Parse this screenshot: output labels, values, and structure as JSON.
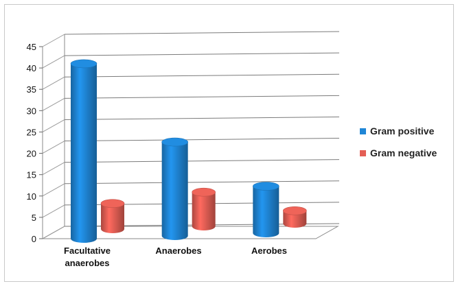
{
  "chart_data": {
    "type": "bar",
    "categories": [
      "Facultative anaerobes",
      "Anaerobes",
      "Aerobes"
    ],
    "category_lines": [
      [
        "Facultative",
        "anaerobes"
      ],
      [
        "Anaerobes"
      ],
      [
        "Aerobes"
      ]
    ],
    "series": [
      {
        "name": "Gram positive",
        "values": [
          41,
          22,
          11
        ],
        "color": "#1f86d6"
      },
      {
        "name": "Gram negative",
        "values": [
          6,
          8,
          3
        ],
        "color": "#e45f55"
      }
    ],
    "ylim": [
      0,
      45
    ],
    "yticks": [
      0,
      5,
      10,
      15,
      20,
      25,
      30,
      35,
      40,
      45
    ],
    "grid": true,
    "legend": "right",
    "style": "3d-cylinder"
  }
}
